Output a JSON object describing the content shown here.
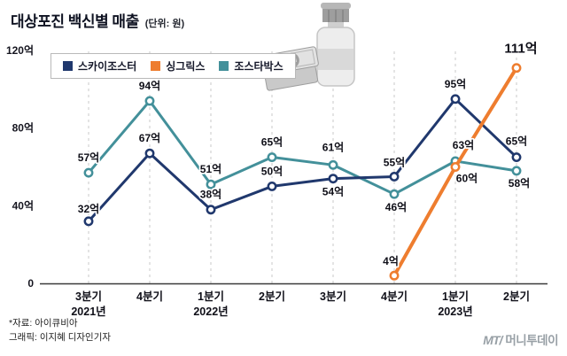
{
  "header": {
    "title": "대상포진 백신별 매출",
    "unit": "(단위: 원)"
  },
  "chart_data": {
    "type": "line",
    "title": "대상포진 백신별 매출",
    "unit_note": "(단위: 원)",
    "grid": "vertical-dashed",
    "legend_position": "top-left",
    "ylim": [
      0,
      120
    ],
    "yticks": [
      {
        "value": 0,
        "label": "0"
      },
      {
        "value": 40,
        "label": "40억"
      },
      {
        "value": 80,
        "label": "80억"
      },
      {
        "value": 120,
        "label": "120억"
      }
    ],
    "x_labels": [
      {
        "quarter": "3분기",
        "year": "2021년"
      },
      {
        "quarter": "4분기",
        "year": ""
      },
      {
        "quarter": "1분기",
        "year": "2022년"
      },
      {
        "quarter": "2분기",
        "year": ""
      },
      {
        "quarter": "3분기",
        "year": ""
      },
      {
        "quarter": "4분기",
        "year": ""
      },
      {
        "quarter": "1분기",
        "year": "2023년"
      },
      {
        "quarter": "2분기",
        "year": ""
      }
    ],
    "series": [
      {
        "name": "스카이조스터",
        "color": "#20386d",
        "values": [
          32,
          67,
          38,
          50,
          54,
          55,
          95,
          65
        ],
        "labels": [
          "32억",
          "67억",
          "38억",
          "50억",
          "54억",
          "55억",
          "95억",
          "65억"
        ]
      },
      {
        "name": "싱그릭스",
        "color": "#ee7d2f",
        "values": [
          null,
          null,
          null,
          null,
          null,
          4,
          60,
          111
        ],
        "labels": [
          null,
          null,
          null,
          null,
          null,
          "4억",
          "60억",
          "111억"
        ],
        "highlight_last": true
      },
      {
        "name": "조스타박스",
        "color": "#43909a",
        "values": [
          57,
          94,
          51,
          65,
          61,
          46,
          63,
          58
        ],
        "labels": [
          "57억",
          "94억",
          "51억",
          "65억",
          "61억",
          "46억",
          "63억",
          "58억"
        ]
      }
    ]
  },
  "illustration": {
    "name": "cash-and-vaccine-vial",
    "currency_symbol": "₩"
  },
  "footer": {
    "source": "*자료: 아이큐비아",
    "credit": "그래픽: 이지혜 디자인기자"
  },
  "logo": {
    "mark": "MT/",
    "name": "머니투데이"
  }
}
